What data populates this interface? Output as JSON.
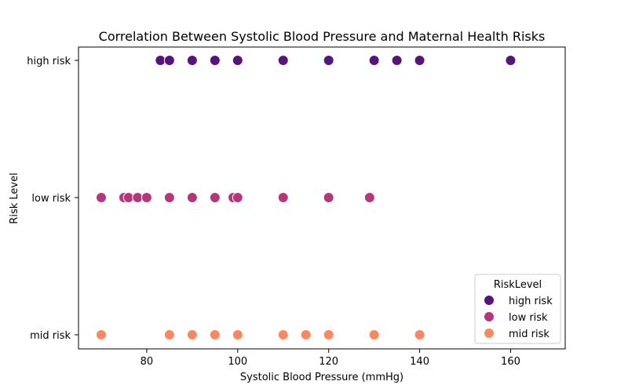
{
  "chart_data": {
    "type": "scatter",
    "title": "Correlation Between Systolic Blood Pressure and Maternal Health Risks",
    "xlabel": "Systolic Blood Pressure (mmHg)",
    "ylabel": "Risk Level",
    "xlim": [
      65,
      172
    ],
    "xticks": [
      "80",
      "100",
      "120",
      "140",
      "160"
    ],
    "xtick_values": [
      80,
      100,
      120,
      140,
      160
    ],
    "categories": [
      "high risk",
      "low risk",
      "mid risk"
    ],
    "grid": false,
    "legend": {
      "title": "RiskLevel",
      "placement": "bottom-right"
    },
    "series": [
      {
        "name": "high risk",
        "color": "#56147d",
        "x": [
          83,
          85,
          90,
          95,
          100,
          110,
          120,
          130,
          135,
          140,
          160
        ]
      },
      {
        "name": "low risk",
        "color": "#b5367a",
        "x": [
          70,
          75,
          76,
          78,
          80,
          85,
          90,
          95,
          99,
          100,
          110,
          120,
          129
        ]
      },
      {
        "name": "mid risk",
        "color": "#fb8861",
        "x": [
          70,
          85,
          90,
          95,
          100,
          110,
          115,
          120,
          130,
          140
        ]
      }
    ]
  }
}
